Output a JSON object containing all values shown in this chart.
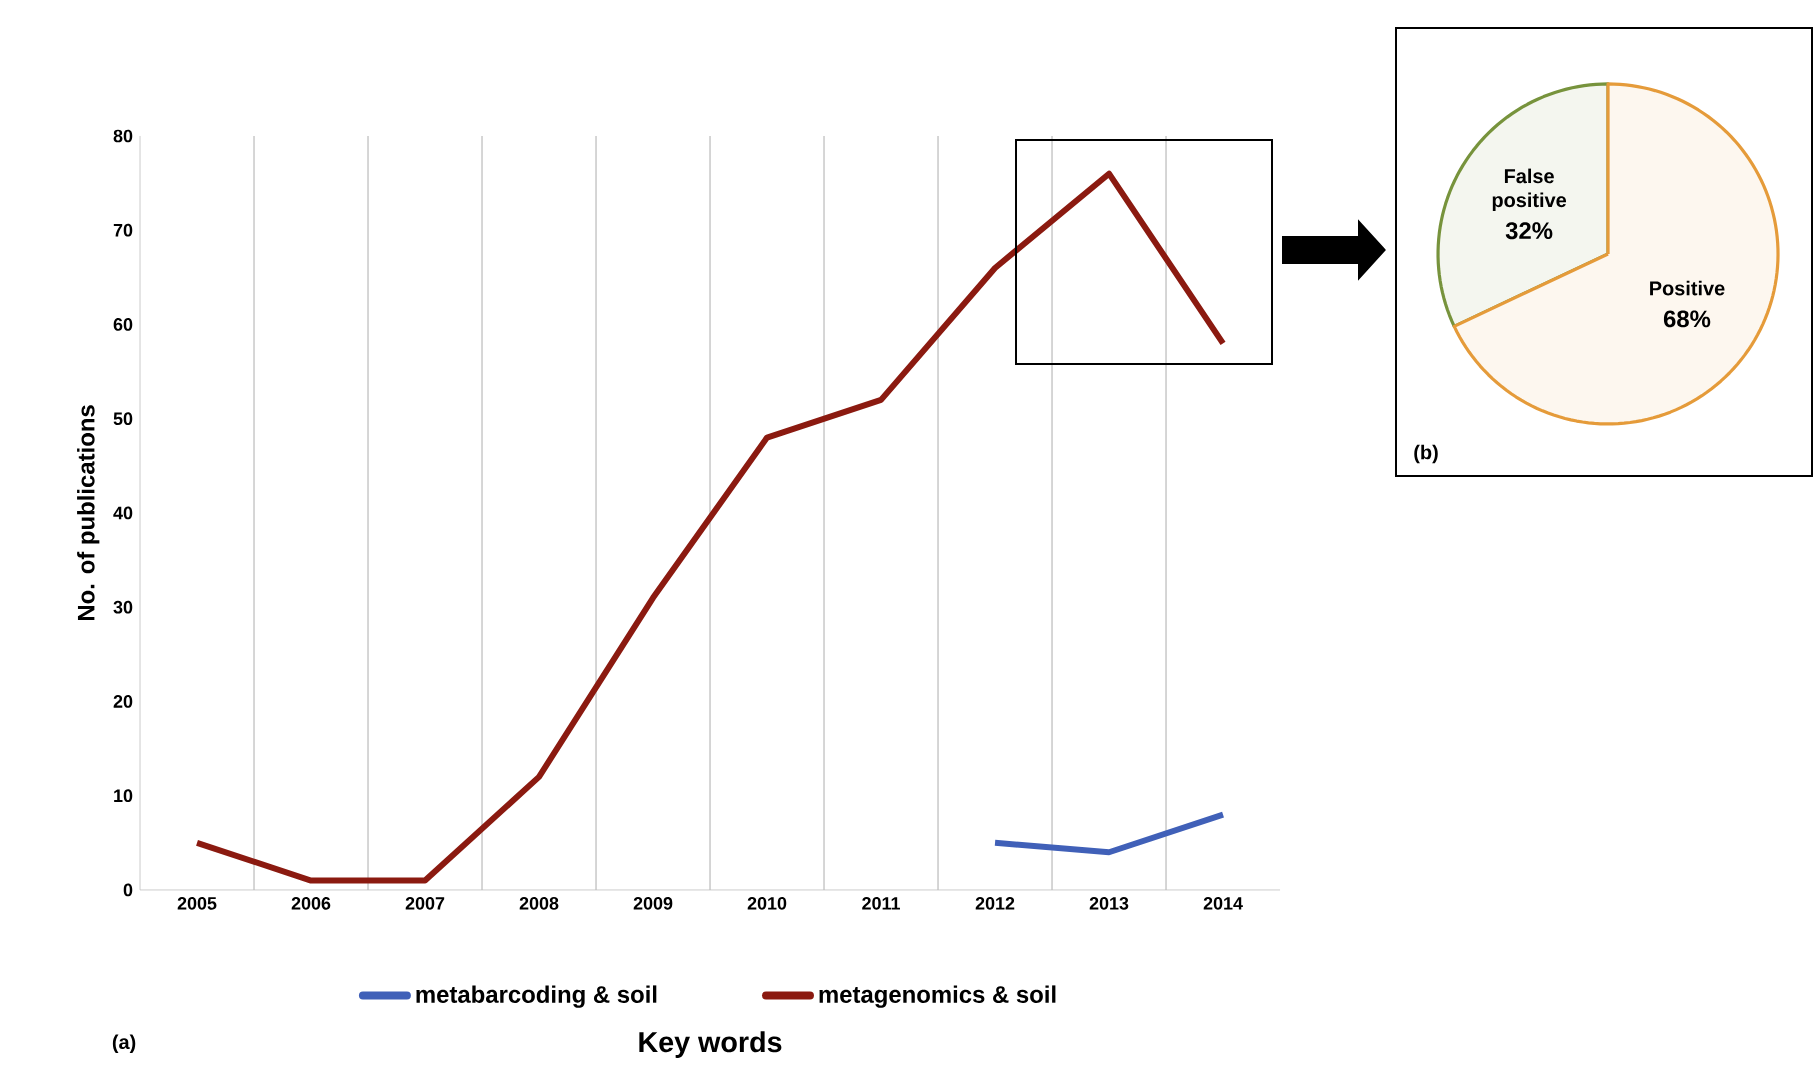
{
  "chart_data": [
    {
      "type": "line",
      "xlabel": "Key words",
      "ylabel": "No. of publications",
      "categories": [
        "2005",
        "2006",
        "2007",
        "2008",
        "2009",
        "2010",
        "2011",
        "2012",
        "2013",
        "2014"
      ],
      "series": [
        {
          "name": "metabarcoding & soil",
          "color": "#4060b8",
          "values": [
            null,
            null,
            null,
            null,
            null,
            null,
            null,
            5,
            4,
            8
          ]
        },
        {
          "name": "metagenomics & soil",
          "color": "#8b1a10",
          "values": [
            5,
            1,
            1,
            12,
            31,
            48,
            52,
            66,
            76,
            58
          ]
        }
      ],
      "ylim": [
        0,
        80
      ],
      "yticks": [
        0,
        10,
        20,
        30,
        40,
        50,
        60,
        70,
        80
      ],
      "grid": "x",
      "legend": "bottom",
      "annotations": [
        "(a)"
      ]
    },
    {
      "type": "pie",
      "categories": [
        "False positive",
        "Positive"
      ],
      "values": [
        32,
        68
      ],
      "colors": [
        "#77933c",
        "#e59b3a"
      ],
      "value_labels": [
        "32%",
        "68%"
      ],
      "annotations": [
        "(b)"
      ]
    }
  ]
}
